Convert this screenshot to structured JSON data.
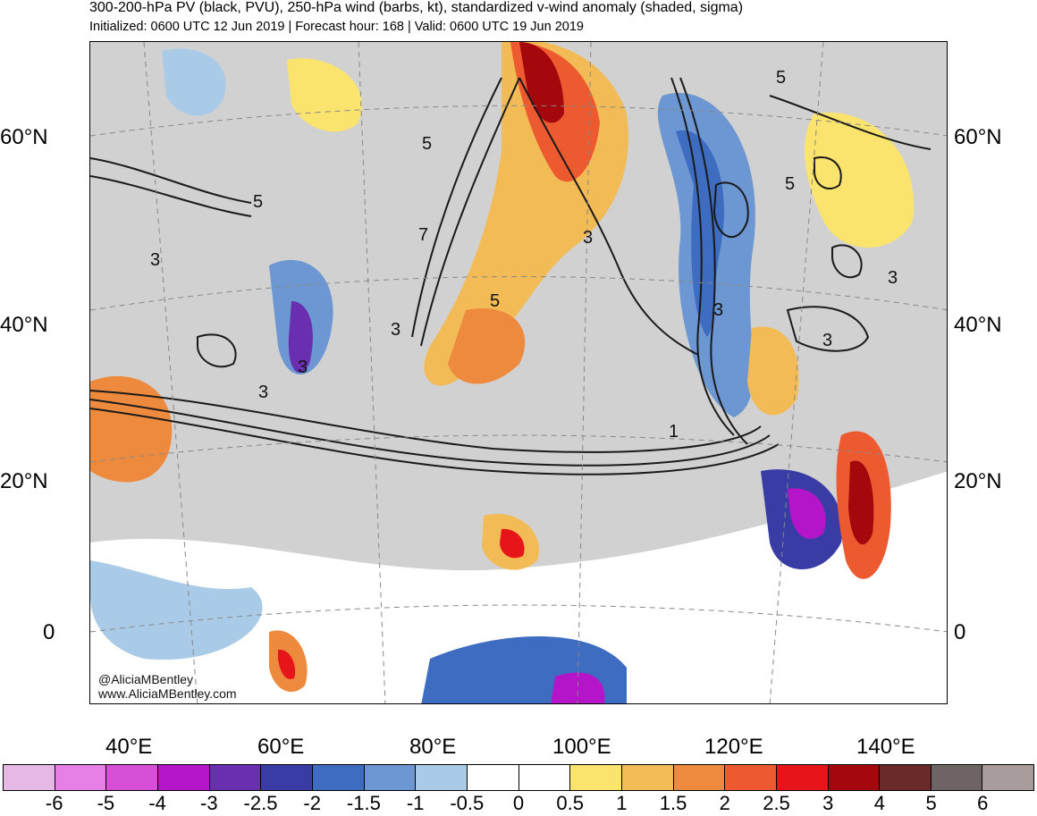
{
  "header": {
    "title": "300-200-hPa PV (black, PVU), 250-hPa wind (barbs, kt), standardized v-wind anomaly (shaded, sigma)",
    "subtitle": "Initialized: 0600 UTC 12 Jun 2019 | Forecast hour: 168 | Valid: 0600 UTC 19 Jun 2019"
  },
  "axes": {
    "lat_left": [
      "60°N",
      "40°N",
      "20°N",
      "0"
    ],
    "lat_right": [
      "60°N",
      "40°N",
      "20°N",
      "0"
    ],
    "lon": [
      "40°E",
      "60°E",
      "80°E",
      "100°E",
      "120°E",
      "140°E"
    ]
  },
  "contour_labels": [
    "5",
    "5",
    "3",
    "5",
    "3",
    "3",
    "5",
    "3",
    "3",
    "3",
    "3",
    "1",
    "7",
    "5",
    "3"
  ],
  "credits": {
    "handle": "@AliciaMBentley",
    "site": "www.AliciaMBentley.com"
  },
  "colorbar": {
    "labels": [
      "-6",
      "-5",
      "-4",
      "-3",
      "-2.5",
      "-2",
      "-1.5",
      "-1",
      "-0.5",
      "0",
      "0.5",
      "1",
      "1.5",
      "2",
      "2.5",
      "3",
      "4",
      "5",
      "6"
    ],
    "colors": [
      "#e6b8e6",
      "#e680e6",
      "#d64fd6",
      "#b515c8",
      "#6a2fb0",
      "#3a3ca6",
      "#3d6cc1",
      "#6c97d2",
      "#a9cbe8",
      "#ffffff",
      "#ffffff",
      "#fbe46e",
      "#f3bb55",
      "#ee8a3e",
      "#ee5a2f",
      "#e6151a",
      "#a5080c",
      "#6a2a2a",
      "#6e6464",
      "#a89c9c"
    ]
  }
}
